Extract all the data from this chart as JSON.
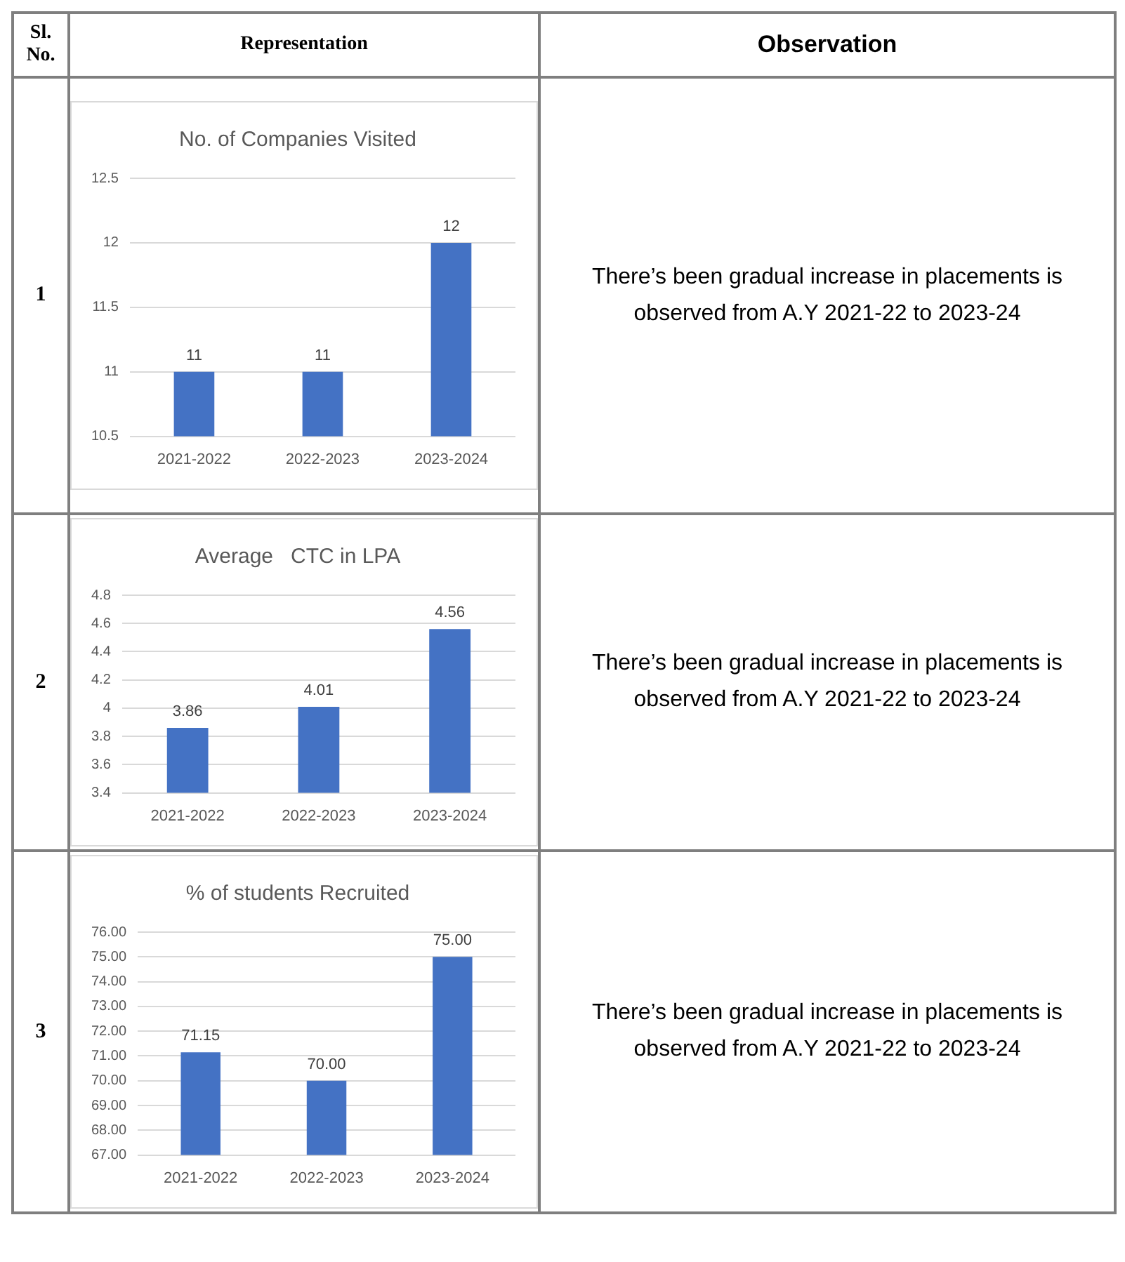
{
  "chart_data": [
    {
      "type": "other",
      "annotations": [
        "Sl. No.",
        "Representation",
        "Observation"
      ]
    },
    {
      "type": "bar",
      "title": "No. of Companies Visited",
      "categories": [
        "2021-2022",
        "2022-2023",
        "2023-2024"
      ],
      "values": [
        11,
        11,
        12
      ],
      "color": "#4472c4",
      "ylim": [
        10.5,
        12.5
      ],
      "yticks": [
        10.5,
        11,
        11.5,
        12,
        12.5
      ],
      "grid": "y",
      "data_labels": true,
      "annotations": [
        "1",
        "There’s been gradual increase in placements is observed from A.Y 2021-22 to 2023-24"
      ]
    },
    {
      "type": "bar",
      "title": "Average   CTC in LPA",
      "categories": [
        "2021-2022",
        "2022-2023",
        "2023-2024"
      ],
      "values": [
        3.86,
        4.01,
        4.56
      ],
      "color": "#4472c4",
      "ylim": [
        3.4,
        4.8
      ],
      "yticks": [
        3.4,
        3.6,
        3.8,
        4,
        4.2,
        4.4,
        4.6,
        4.8
      ],
      "grid": "y",
      "data_labels": true,
      "annotations": [
        "2",
        "There’s been gradual increase in placements is observed from A.Y 2021-22 to 2023-24"
      ]
    },
    {
      "type": "bar",
      "title": "% of students Recruited",
      "categories": [
        "2021-2022",
        "2022-2023",
        "2023-2024"
      ],
      "values": [
        71.15,
        70,
        75
      ],
      "value_labels": [
        "71.15",
        "70.00",
        "75.00"
      ],
      "color": "#4472c4",
      "ylim": [
        67,
        76
      ],
      "yticks": [
        {
          "value": 67,
          "label": "67.00"
        },
        {
          "value": 68,
          "label": "68.00"
        },
        {
          "value": 69,
          "label": "69.00"
        },
        {
          "value": 70,
          "label": "70.00"
        },
        {
          "value": 71,
          "label": "71.00"
        },
        {
          "value": 72,
          "label": "72.00"
        },
        {
          "value": 73,
          "label": "73.00"
        },
        {
          "value": 74,
          "label": "74.00"
        },
        {
          "value": 75,
          "label": "75.00"
        },
        {
          "value": 76,
          "label": "76.00"
        }
      ],
      "grid": "y",
      "annotations": [
        "3",
        "There’s been gradual increase in placements is observed from A.Y 2021-22 to 2023-24"
      ]
    }
  ]
}
